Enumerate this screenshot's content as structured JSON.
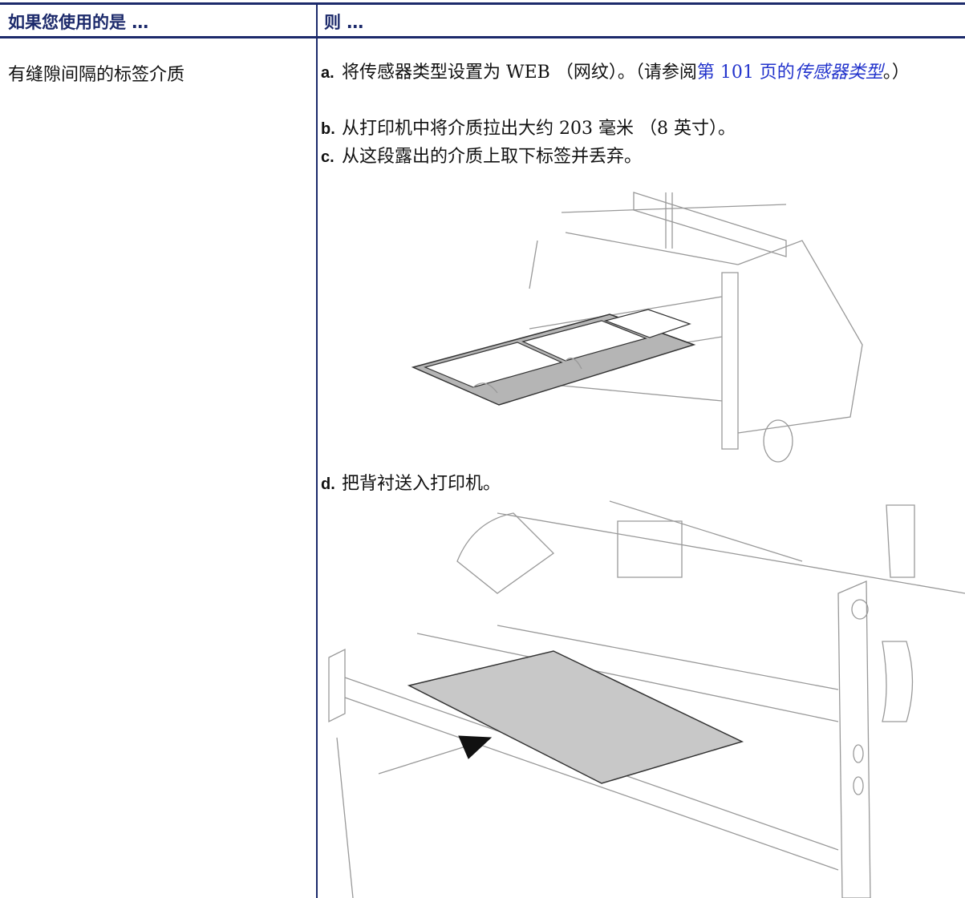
{
  "table": {
    "header": [
      "如果您使用的是 …",
      "则 …"
    ],
    "rows": [
      {
        "condition": "有缝隙间隔的标签介质",
        "steps": [
          {
            "marker": "a.",
            "parts": [
              "将传感器类型设置为 WEB （网纹）。（请参阅",
              "第 101 页的",
              "传感器类型",
              "。）"
            ]
          },
          {
            "marker": "b.",
            "parts": [
              "从打印机中将介质拉出大约 203 毫米 （8 英寸）。"
            ]
          },
          {
            "marker": "c.",
            "parts": [
              "从这段露出的介质上取下标签并丢弃。"
            ]
          },
          {
            "marker": "d.",
            "parts": [
              "把背衬送入打印机。"
            ]
          }
        ]
      }
    ]
  }
}
